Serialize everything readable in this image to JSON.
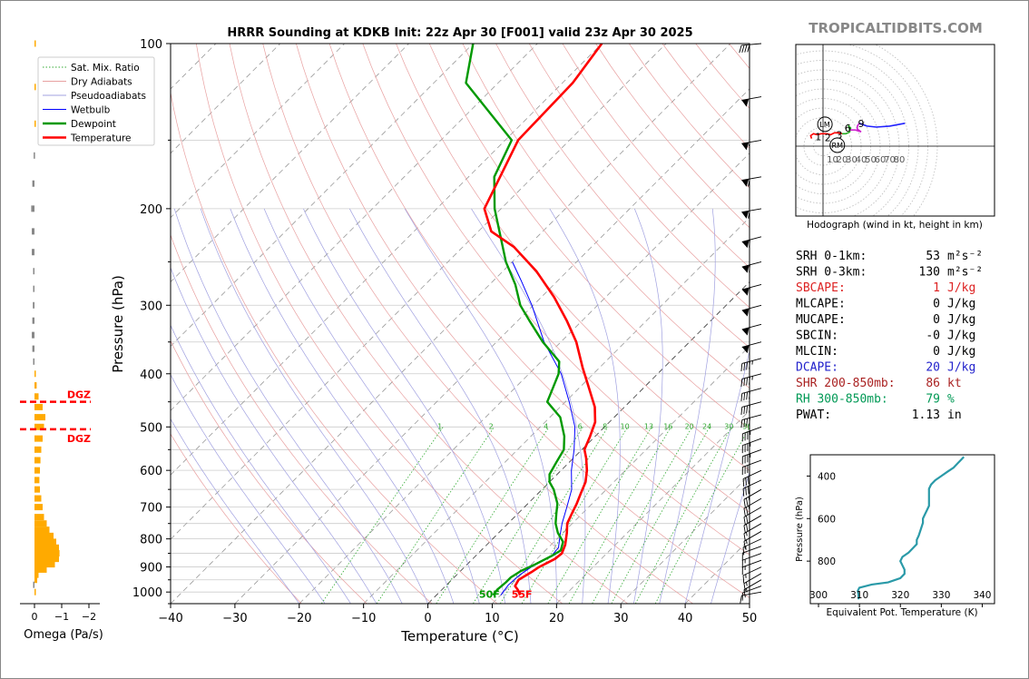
{
  "colors": {
    "temperature": "#ff0000",
    "dewpoint": "#009900",
    "wetbulb": "#0000ff",
    "dry_adiabat": "#e8a0a0",
    "pseudoadiabat": "#a0a0e0",
    "mixing_ratio": "#33aa33",
    "omega_up": "#ffaa00",
    "omega_down": "#888888",
    "hodo_0_3": "#ff0000",
    "hodo_3_6": "#22aa22",
    "hodo_6_9": "#cc22cc",
    "hodo_9_12": "#2222ff",
    "theta_e": "#2a9aa8",
    "watermark": "#888888"
  },
  "chart_data": [
    {
      "id": "skewt",
      "type": "line",
      "title": "HRRR Sounding at KDKB Init: 22z Apr 30 [F001] valid 23z Apr 30 2025",
      "xlabel": "Temperature (°C)",
      "ylabel": "Pressure (hPa)",
      "xlim": [
        -40,
        50
      ],
      "ylim": [
        1050,
        100
      ],
      "y_scale": "log",
      "skew": "temperature lines skewed 45°",
      "xticks": [
        "−40",
        "−30",
        "−20",
        "−10",
        "0",
        "10",
        "20",
        "30",
        "40",
        "50"
      ],
      "yticks": [
        "100",
        "200",
        "300",
        "400",
        "500",
        "600",
        "700",
        "800",
        "900",
        "1000"
      ],
      "grid": true,
      "legend_position": "top-left",
      "legend": [
        "Sat. Mix. Ratio",
        "Dry Adiabats",
        "Pseudoadiabats",
        "Wetbulb",
        "Dewpoint",
        "Temperature"
      ],
      "mixing_ratio_labels": [
        "1",
        "2",
        "4",
        "6",
        "8",
        "10",
        "13",
        "16",
        "20",
        "24",
        "30",
        "36"
      ],
      "surface_labels": {
        "dewpoint": "50F",
        "temperature": "55F"
      },
      "series": [
        {
          "name": "Temperature",
          "points": [
            [
              1013,
              13.0
            ],
            [
              990,
              11.8
            ],
            [
              975,
              10.8
            ],
            [
              950,
              10.4
            ],
            [
              920,
              11.2
            ],
            [
              900,
              11.6
            ],
            [
              870,
              12.8
            ],
            [
              850,
              13.0
            ],
            [
              820,
              12.2
            ],
            [
              780,
              10.6
            ],
            [
              750,
              9.2
            ],
            [
              720,
              8.4
            ],
            [
              690,
              7.6
            ],
            [
              660,
              6.6
            ],
            [
              630,
              5.6
            ],
            [
              600,
              4.0
            ],
            [
              570,
              2.0
            ],
            [
              550,
              0.4
            ],
            [
              520,
              -0.8
            ],
            [
              490,
              -2.2
            ],
            [
              460,
              -4.6
            ],
            [
              420,
              -9.0
            ],
            [
              390,
              -12.6
            ],
            [
              350,
              -17.6
            ],
            [
              320,
              -22.4
            ],
            [
              290,
              -28.0
            ],
            [
              260,
              -34.8
            ],
            [
              235,
              -42.0
            ],
            [
              220,
              -48.0
            ],
            [
              200,
              -52.6
            ],
            [
              150,
              -58.0
            ],
            [
              118,
              -58.4
            ],
            [
              100,
              -60.0
            ]
          ]
        },
        {
          "name": "Dewpoint",
          "points": [
            [
              1013,
              8.8
            ],
            [
              990,
              8.6
            ],
            [
              960,
              8.8
            ],
            [
              940,
              8.8
            ],
            [
              915,
              9.4
            ],
            [
              890,
              10.6
            ],
            [
              860,
              11.8
            ],
            [
              840,
              12.4
            ],
            [
              810,
              11.4
            ],
            [
              780,
              9.2
            ],
            [
              750,
              7.4
            ],
            [
              720,
              6.0
            ],
            [
              690,
              4.6
            ],
            [
              650,
              1.8
            ],
            [
              630,
              0.0
            ],
            [
              610,
              -1.2
            ],
            [
              580,
              -2.0
            ],
            [
              550,
              -2.8
            ],
            [
              520,
              -4.8
            ],
            [
              480,
              -8.4
            ],
            [
              450,
              -12.8
            ],
            [
              430,
              -13.8
            ],
            [
              400,
              -15.4
            ],
            [
              380,
              -17.2
            ],
            [
              350,
              -22.8
            ],
            [
              320,
              -28.2
            ],
            [
              300,
              -32.0
            ],
            [
              275,
              -36.0
            ],
            [
              250,
              -41.0
            ],
            [
              200,
              -51.0
            ],
            [
              175,
              -56.0
            ],
            [
              150,
              -59.0
            ],
            [
              118,
              -75.0
            ],
            [
              100,
              -80.0
            ]
          ]
        },
        {
          "name": "Wetbulb",
          "points": [
            [
              1013,
              10.0
            ],
            [
              970,
              9.6
            ],
            [
              930,
              9.8
            ],
            [
              900,
              10.4
            ],
            [
              860,
              11.8
            ],
            [
              830,
              11.6
            ],
            [
              790,
              10.0
            ],
            [
              750,
              8.4
            ],
            [
              700,
              6.6
            ],
            [
              650,
              4.6
            ],
            [
              600,
              1.6
            ],
            [
              550,
              -1.2
            ],
            [
              500,
              -4.6
            ],
            [
              450,
              -9.4
            ],
            [
              400,
              -15.0
            ],
            [
              350,
              -22.6
            ],
            [
              300,
              -30.2
            ],
            [
              270,
              -35.8
            ],
            [
              250,
              -40.0
            ]
          ]
        }
      ],
      "wind_barbs_kt": [
        [
          1000,
          10,
          260
        ],
        [
          975,
          12,
          250
        ],
        [
          950,
          14,
          240
        ],
        [
          925,
          15,
          240
        ],
        [
          900,
          15,
          245
        ],
        [
          875,
          14,
          250
        ],
        [
          850,
          13,
          250
        ],
        [
          825,
          12,
          250
        ],
        [
          800,
          13,
          245
        ],
        [
          775,
          15,
          240
        ],
        [
          750,
          17,
          240
        ],
        [
          725,
          20,
          240
        ],
        [
          700,
          22,
          240
        ],
        [
          675,
          25,
          240
        ],
        [
          650,
          27,
          240
        ],
        [
          625,
          28,
          245
        ],
        [
          600,
          30,
          245
        ],
        [
          575,
          32,
          250
        ],
        [
          550,
          33,
          250
        ],
        [
          525,
          35,
          250
        ],
        [
          500,
          37,
          250
        ],
        [
          475,
          38,
          255
        ],
        [
          450,
          40,
          255
        ],
        [
          425,
          42,
          255
        ],
        [
          400,
          44,
          255
        ],
        [
          375,
          46,
          255
        ],
        [
          350,
          48,
          255
        ],
        [
          325,
          50,
          255
        ],
        [
          300,
          52,
          255
        ],
        [
          275,
          55,
          255
        ],
        [
          250,
          58,
          255
        ],
        [
          225,
          60,
          255
        ],
        [
          200,
          62,
          260
        ],
        [
          175,
          60,
          260
        ],
        [
          150,
          55,
          260
        ],
        [
          125,
          50,
          260
        ],
        [
          100,
          40,
          265
        ]
      ]
    },
    {
      "id": "omega",
      "type": "bar",
      "orientation": "horizontal",
      "xlabel": "Omega (Pa/s)",
      "xticks": [
        "0",
        "−1",
        "−2"
      ],
      "xlim": [
        0.3,
        -2.2
      ],
      "dgz_label": "DGZ",
      "dgz_hPa": [
        450,
        505
      ],
      "values": [
        [
          1000,
          -0.02
        ],
        [
          970,
          0.05
        ],
        [
          950,
          -0.1
        ],
        [
          930,
          -0.15
        ],
        [
          910,
          -0.45
        ],
        [
          890,
          -0.75
        ],
        [
          870,
          -0.9
        ],
        [
          850,
          -0.92
        ],
        [
          830,
          -0.9
        ],
        [
          810,
          -0.8
        ],
        [
          790,
          -0.7
        ],
        [
          770,
          -0.55
        ],
        [
          750,
          -0.45
        ],
        [
          730,
          -0.35
        ],
        [
          700,
          -0.3
        ],
        [
          675,
          -0.25
        ],
        [
          650,
          -0.2
        ],
        [
          625,
          -0.18
        ],
        [
          600,
          -0.2
        ],
        [
          575,
          -0.22
        ],
        [
          550,
          -0.25
        ],
        [
          525,
          -0.3
        ],
        [
          500,
          -0.35
        ],
        [
          480,
          -0.4
        ],
        [
          460,
          -0.3
        ],
        [
          440,
          -0.15
        ],
        [
          420,
          -0.08
        ],
        [
          400,
          -0.02
        ],
        [
          380,
          0.05
        ],
        [
          360,
          0.08
        ],
        [
          340,
          0.1
        ],
        [
          320,
          0.08
        ],
        [
          300,
          0.06
        ],
        [
          280,
          0.05
        ],
        [
          260,
          0.05
        ],
        [
          240,
          0.1
        ],
        [
          220,
          0.1
        ],
        [
          200,
          0.12
        ],
        [
          180,
          0.08
        ],
        [
          160,
          0.03
        ],
        [
          140,
          -0.02
        ],
        [
          120,
          -0.05
        ],
        [
          100,
          -0.03
        ]
      ]
    },
    {
      "id": "hodograph",
      "type": "line",
      "title": "Hodograph (wind in kt, height in km)",
      "ring_labels": [
        "10",
        "20",
        "30",
        "40",
        "50",
        "60",
        "70",
        "80"
      ],
      "height_labels": [
        {
          "text": "1",
          "u": -5,
          "v": 10
        },
        {
          "text": "2",
          "u": 5,
          "v": 9
        },
        {
          "text": "3",
          "u": 17,
          "v": 12
        },
        {
          "text": "6",
          "u": 26,
          "v": 19
        },
        {
          "text": "9",
          "u": 40,
          "v": 24
        }
      ],
      "storm_motion": [
        {
          "text": "LM",
          "u": 2,
          "v": 23
        },
        {
          "text": "RM",
          "u": 15,
          "v": 1
        }
      ],
      "segments": [
        {
          "name": "0-3 km",
          "points": [
            [
              -12,
              8
            ],
            [
              -13,
              11
            ],
            [
              -10,
              13
            ],
            [
              -6,
              12
            ],
            [
              -2,
              13
            ],
            [
              4,
              13
            ],
            [
              8,
              12
            ],
            [
              12,
              14
            ],
            [
              16,
              14
            ],
            [
              20,
              13
            ]
          ]
        },
        {
          "name": "3-6 km",
          "points": [
            [
              20,
              13
            ],
            [
              24,
              13
            ],
            [
              28,
              15
            ],
            [
              29,
              19
            ],
            [
              27,
              21
            ],
            [
              28,
              17
            ]
          ]
        },
        {
          "name": "6-9 km",
          "points": [
            [
              28,
              17
            ],
            [
              34,
              17
            ],
            [
              40,
              15
            ],
            [
              36,
              18
            ],
            [
              36,
              21
            ],
            [
              38,
              24
            ]
          ]
        },
        {
          "name": "9-12 km",
          "points": [
            [
              38,
              24
            ],
            [
              46,
              21
            ],
            [
              56,
              20
            ],
            [
              70,
              21
            ],
            [
              86,
              24
            ]
          ]
        }
      ]
    },
    {
      "id": "theta_e",
      "type": "line",
      "xlabel": "Equivalent Pot. Temperature (K)",
      "ylabel": "Pressure (hPa)",
      "xticks": [
        "300",
        "310",
        "320",
        "330",
        "340"
      ],
      "yticks": [
        "400",
        "600",
        "800"
      ],
      "xlim": [
        298,
        343
      ],
      "ylim": [
        1000,
        300
      ],
      "values": [
        [
          980,
          309.8
        ],
        [
          960,
          309.8
        ],
        [
          940,
          309.6
        ],
        [
          925,
          310.0
        ],
        [
          910,
          313.0
        ],
        [
          900,
          317.0
        ],
        [
          880,
          320.0
        ],
        [
          860,
          321.0
        ],
        [
          840,
          321.0
        ],
        [
          820,
          320.5
        ],
        [
          800,
          320.0
        ],
        [
          780,
          320.5
        ],
        [
          760,
          322.0
        ],
        [
          740,
          323.0
        ],
        [
          720,
          324.0
        ],
        [
          700,
          324.0
        ],
        [
          680,
          324.5
        ],
        [
          650,
          325.0
        ],
        [
          620,
          325.5
        ],
        [
          600,
          325.5
        ],
        [
          580,
          326.0
        ],
        [
          560,
          326.5
        ],
        [
          540,
          327.0
        ],
        [
          520,
          327.0
        ],
        [
          500,
          327.0
        ],
        [
          480,
          327.0
        ],
        [
          460,
          327.0
        ],
        [
          440,
          327.5
        ],
        [
          420,
          328.5
        ],
        [
          400,
          330.0
        ],
        [
          380,
          331.5
        ],
        [
          360,
          333.0
        ],
        [
          340,
          334.0
        ],
        [
          320,
          335.0
        ],
        [
          310,
          335.5
        ]
      ]
    }
  ],
  "indices": [
    {
      "label": "SRH 0-1km:",
      "value": "53",
      "unit": "m²s⁻²",
      "color": "#000000"
    },
    {
      "label": "SRH 0-3km:",
      "value": "130",
      "unit": "m²s⁻²",
      "color": "#000000"
    },
    {
      "label": "SBCAPE:",
      "value": "1",
      "unit": "J/kg",
      "color": "#dd2222"
    },
    {
      "label": "MLCAPE:",
      "value": "0",
      "unit": "J/kg",
      "color": "#000000"
    },
    {
      "label": "MUCAPE:",
      "value": "0",
      "unit": "J/kg",
      "color": "#000000"
    },
    {
      "label": "SBCIN:",
      "value": "-0",
      "unit": "J/kg",
      "color": "#000000"
    },
    {
      "label": "MLCIN:",
      "value": "0",
      "unit": "J/kg",
      "color": "#000000"
    },
    {
      "label": "DCAPE:",
      "value": "20",
      "unit": "J/kg",
      "color": "#2222cc"
    },
    {
      "label": "SHR 200-850mb:",
      "value": "86",
      "unit": "kt",
      "color": "#aa2222"
    },
    {
      "label": "RH 300-850mb:",
      "value": "79",
      "unit": "%",
      "color": "#009955"
    },
    {
      "label": "PWAT:",
      "value": "1.13",
      "unit": "in",
      "color": "#000000"
    }
  ],
  "watermark": "TROPICALTIDBITS.COM"
}
